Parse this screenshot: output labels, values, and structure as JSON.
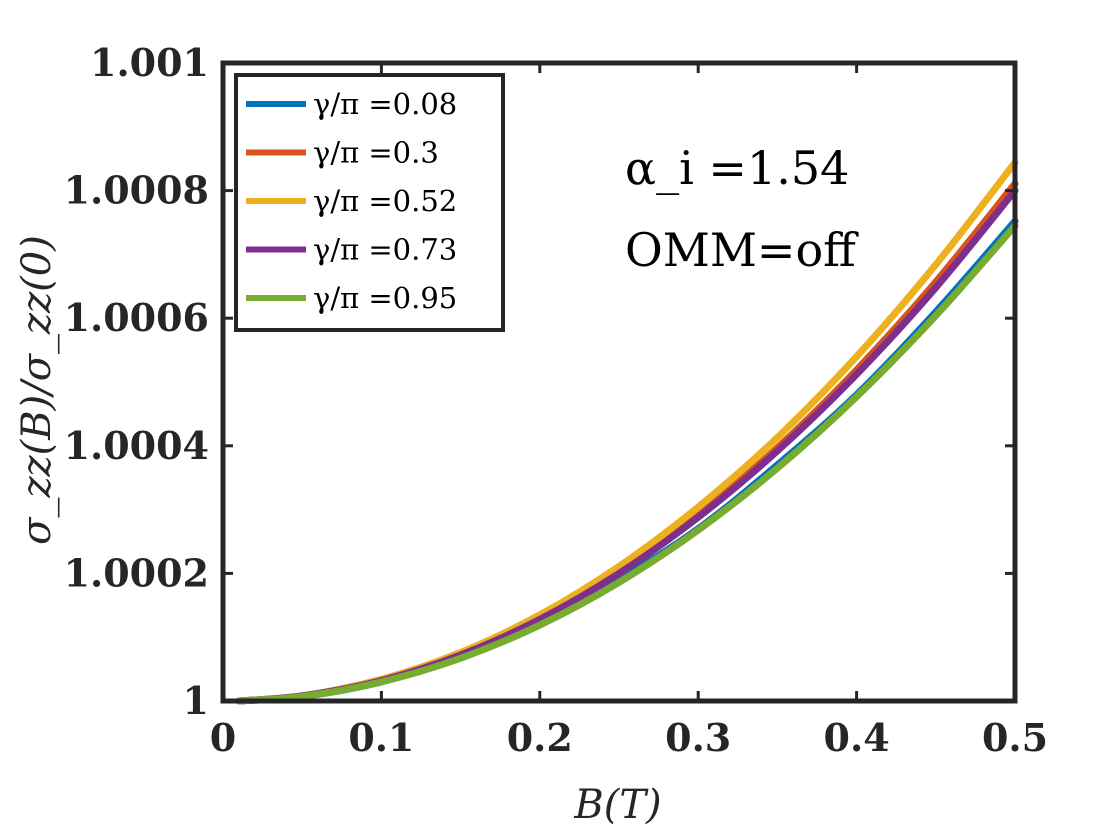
{
  "chart_data": {
    "type": "line",
    "title": "",
    "xlabel": "B(T)",
    "ylabel": "σ_zz(B)/σ_zz(0)",
    "xlim": [
      0,
      0.5
    ],
    "ylim": [
      1,
      1.001
    ],
    "xticks": [
      "0",
      "0.1",
      "0.2",
      "0.3",
      "0.4",
      "0.5"
    ],
    "xtick_values": [
      0,
      0.1,
      0.2,
      0.3,
      0.4,
      0.5
    ],
    "yticks": [
      "1",
      "1.0002",
      "1.0004",
      "1.0006",
      "1.0008",
      "1.001"
    ],
    "ytick_values": [
      1,
      1.0002,
      1.0004,
      1.0006,
      1.0008,
      1.001
    ],
    "grid": false,
    "legend_position": "top-left",
    "annotations": [
      "α_i =1.54",
      "OMM=off"
    ],
    "x": [
      0.01,
      0.05,
      0.1,
      0.15,
      0.2,
      0.25,
      0.3,
      0.35,
      0.4,
      0.45,
      0.5
    ],
    "series": [
      {
        "name": "γ/π =0.08",
        "color": "#0072BD",
        "values": [
          1.0,
          1.000007,
          1.00003,
          1.000068,
          1.00012,
          1.00019,
          1.00027,
          1.00037,
          1.00048,
          1.00061,
          1.000752
        ]
      },
      {
        "name": "γ/π =0.3",
        "color": "#D95319",
        "values": [
          1.0,
          1.000008,
          1.000032,
          1.000073,
          1.00013,
          1.000203,
          1.000292,
          1.000397,
          1.000519,
          1.000657,
          1.000811
        ]
      },
      {
        "name": "γ/π =0.52",
        "color": "#EDB120",
        "values": [
          1.0,
          1.000008,
          1.000034,
          1.000076,
          1.000135,
          1.000211,
          1.000304,
          1.000413,
          1.00054,
          1.000684,
          1.000844
        ]
      },
      {
        "name": "γ/π =0.73",
        "color": "#7E2F8E",
        "values": [
          1.0,
          1.000008,
          1.000032,
          1.000072,
          1.000128,
          1.0002,
          1.000288,
          1.000392,
          1.000512,
          1.000648,
          1.0008
        ]
      },
      {
        "name": "γ/π =0.95",
        "color": "#77AC30",
        "values": [
          1.0,
          1.000007,
          1.00003,
          1.000067,
          1.000119,
          1.000186,
          1.000268,
          1.000365,
          1.000477,
          1.000604,
          1.000745
        ]
      }
    ]
  }
}
